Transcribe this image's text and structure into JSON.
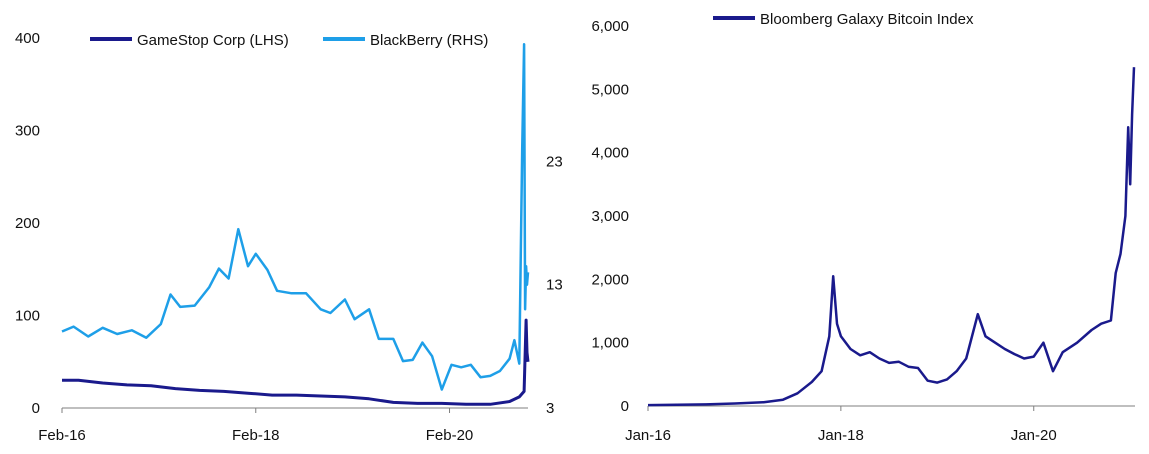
{
  "chart_data": [
    {
      "type": "line",
      "title": "",
      "xlabel": "",
      "ylabel_left": "",
      "ylabel_right": "",
      "x_tick_labels": [
        "Feb-16",
        "Feb-18",
        "Feb-20"
      ],
      "x_ticks": [
        2016.08,
        2018.08,
        2020.08
      ],
      "xlim": [
        2016.08,
        2020.89
      ],
      "y_left": {
        "lim": [
          0,
          400
        ],
        "ticks": [
          0,
          100,
          200,
          300,
          400
        ]
      },
      "y_right": {
        "lim": [
          3,
          33
        ],
        "ticks": [
          3,
          13,
          23
        ]
      },
      "grid": false,
      "legend_position": "top",
      "series": [
        {
          "name": "GameStop Corp (LHS)",
          "axis": "left",
          "color": "#1a1a8c",
          "x": [
            2016.08,
            2016.25,
            2016.5,
            2016.75,
            2017.0,
            2017.25,
            2017.5,
            2017.75,
            2018.0,
            2018.25,
            2018.5,
            2018.75,
            2019.0,
            2019.25,
            2019.5,
            2019.75,
            2020.0,
            2020.25,
            2020.5,
            2020.7,
            2020.8,
            2020.85,
            2020.87,
            2020.88,
            2020.89
          ],
          "y": [
            30,
            30,
            27,
            25,
            24,
            21,
            19,
            18,
            16,
            14,
            14,
            13,
            12,
            10,
            6,
            5,
            5,
            4,
            4,
            7,
            12,
            18,
            95,
            60,
            50
          ]
        },
        {
          "name": "BlackBerry (RHS)",
          "axis": "right",
          "color": "#1e9fe8",
          "x": [
            2016.08,
            2016.2,
            2016.35,
            2016.5,
            2016.65,
            2016.8,
            2016.95,
            2017.1,
            2017.2,
            2017.3,
            2017.45,
            2017.6,
            2017.7,
            2017.8,
            2017.9,
            2018.0,
            2018.08,
            2018.2,
            2018.3,
            2018.45,
            2018.6,
            2018.75,
            2018.85,
            2019.0,
            2019.1,
            2019.25,
            2019.35,
            2019.5,
            2019.6,
            2019.7,
            2019.8,
            2019.9,
            2020.0,
            2020.1,
            2020.2,
            2020.3,
            2020.4,
            2020.5,
            2020.6,
            2020.7,
            2020.75,
            2020.8,
            2020.83,
            2020.85,
            2020.86,
            2020.87,
            2020.88,
            2020.89
          ],
          "y": [
            9.2,
            9.6,
            8.8,
            9.5,
            9.0,
            9.3,
            8.7,
            9.8,
            12.2,
            11.2,
            11.3,
            12.8,
            14.3,
            13.5,
            17.5,
            14.5,
            15.5,
            14.2,
            12.5,
            12.3,
            12.3,
            11.0,
            10.7,
            11.8,
            10.2,
            11.0,
            8.6,
            8.6,
            6.8,
            6.9,
            8.3,
            7.2,
            4.5,
            6.5,
            6.3,
            6.5,
            5.5,
            5.6,
            6.0,
            7.0,
            8.5,
            6.6,
            24.0,
            32.5,
            11.0,
            14.5,
            13.0,
            14.0
          ]
        }
      ]
    },
    {
      "type": "line",
      "title": "",
      "xlabel": "",
      "ylabel": "",
      "x_tick_labels": [
        "Jan-16",
        "Jan-18",
        "Jan-20"
      ],
      "x_ticks": [
        2016.0,
        2018.0,
        2020.0
      ],
      "xlim": [
        2016.0,
        2021.05
      ],
      "ylim": [
        0,
        6000
      ],
      "y_ticks": [
        0,
        1000,
        2000,
        3000,
        4000,
        5000,
        6000
      ],
      "y_tick_labels": [
        "0",
        "1,000",
        "2,000",
        "3,000",
        "4,000",
        "5,000",
        "6,000"
      ],
      "grid": false,
      "legend_position": "top",
      "series": [
        {
          "name": "Bloomberg Galaxy Bitcoin Index",
          "color": "#1a1a8c",
          "x": [
            2016.0,
            2016.3,
            2016.6,
            2016.9,
            2017.2,
            2017.4,
            2017.55,
            2017.7,
            2017.8,
            2017.88,
            2017.92,
            2017.96,
            2018.0,
            2018.1,
            2018.2,
            2018.3,
            2018.4,
            2018.5,
            2018.6,
            2018.7,
            2018.8,
            2018.9,
            2019.0,
            2019.1,
            2019.2,
            2019.3,
            2019.42,
            2019.5,
            2019.6,
            2019.7,
            2019.8,
            2019.9,
            2020.0,
            2020.1,
            2020.2,
            2020.3,
            2020.45,
            2020.6,
            2020.7,
            2020.8,
            2020.85,
            2020.9,
            2020.95,
            2020.98,
            2021.0,
            2021.02,
            2021.04
          ],
          "y": [
            15,
            20,
            25,
            40,
            60,
            100,
            200,
            380,
            550,
            1100,
            2050,
            1300,
            1100,
            900,
            800,
            850,
            750,
            680,
            700,
            620,
            600,
            400,
            370,
            420,
            550,
            750,
            1450,
            1100,
            1000,
            900,
            820,
            750,
            780,
            1000,
            550,
            850,
            1000,
            1200,
            1300,
            1350,
            2100,
            2400,
            3000,
            4400,
            3500,
            4600,
            5350
          ]
        }
      ]
    }
  ]
}
